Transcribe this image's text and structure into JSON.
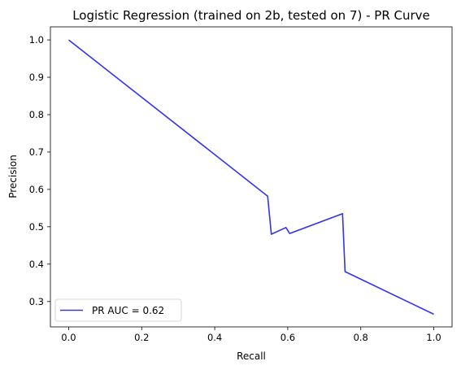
{
  "chart_data": {
    "type": "line",
    "title": "Logistic Regression (trained on 2b, tested on 7) -  PR Curve",
    "xlabel": "Recall",
    "ylabel": "Precision",
    "xlim": [
      -0.05,
      1.05
    ],
    "ylim": [
      0.232,
      1.035
    ],
    "xticks": [
      0.0,
      0.2,
      0.4,
      0.6,
      0.8,
      1.0
    ],
    "xtick_labels": [
      "0.0",
      "0.2",
      "0.4",
      "0.6",
      "0.8",
      "1.0"
    ],
    "yticks": [
      0.3,
      0.4,
      0.5,
      0.6,
      0.7,
      0.8,
      0.9,
      1.0
    ],
    "ytick_labels": [
      "0.3",
      "0.4",
      "0.5",
      "0.6",
      "0.7",
      "0.8",
      "0.9",
      "1.0"
    ],
    "grid": false,
    "legend_position": "lower-left",
    "series": [
      {
        "name": "PR AUC = 0.62",
        "color": "#3333ee",
        "x": [
          0.0,
          0.545,
          0.555,
          0.595,
          0.605,
          0.75,
          0.757,
          1.0
        ],
        "y": [
          1.0,
          0.582,
          0.48,
          0.498,
          0.482,
          0.535,
          0.38,
          0.266
        ]
      }
    ]
  }
}
